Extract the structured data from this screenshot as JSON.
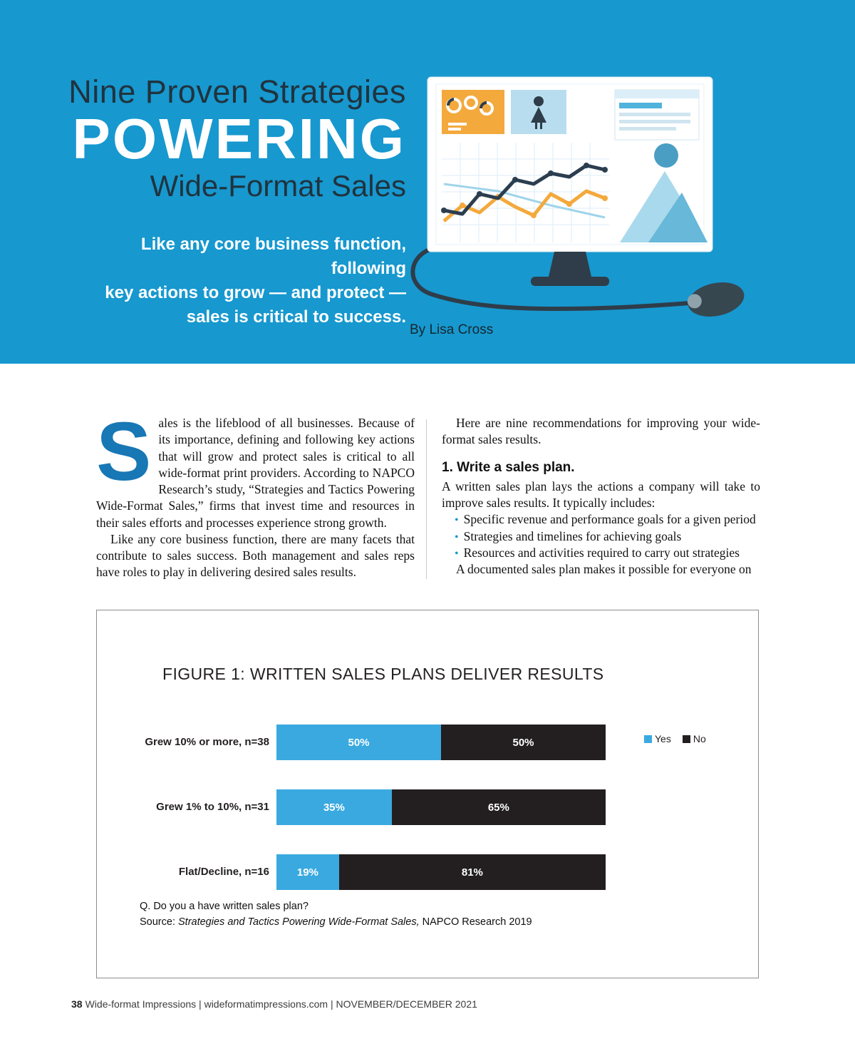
{
  "colors": {
    "header_background": "#1798cf",
    "title_dark": "#20333e",
    "dropcap_blue": "#1877b5",
    "yes_blue": "#3aa9e0",
    "no_dark": "#231f20"
  },
  "header": {
    "title_line1": "Nine Proven Strategies",
    "title_line2": "POWERING",
    "title_line3": "Wide-Format Sales",
    "subtitle_lines": [
      "Like any core business function, following",
      "key actions to grow — and protect —",
      "sales is critical to success."
    ],
    "byline": "By Lisa Cross"
  },
  "article": {
    "left": {
      "dropcap": "S",
      "para1_rest": "ales is the lifeblood of all businesses. Because of its importance, defining and following key actions that will grow and protect sales is critical to all wide-format print providers. According to NAPCO Research’s study, “Strategies and Tactics Powering Wide-Format Sales,” firms that invest time and resources in their sales efforts and processes experience strong growth.",
      "para2": "Like any core business function, there are many facets that contribute to sales success. Both management and sales reps have roles to play in delivering desired sales results."
    },
    "right": {
      "intro": "Here are nine recommendations for improving your wide-format sales results.",
      "heading1": "1.  Write a sales plan.",
      "para1": "A written sales plan lays the actions a company will take to improve sales results. It typically includes:",
      "bullets": [
        "Specific revenue and performance goals for a given period",
        "Strategies and timelines for achieving goals",
        "Resources and activities required to carry out strategies"
      ],
      "closing": "A documented sales plan makes it possible for everyone on"
    }
  },
  "figure": {
    "title": "FIGURE 1: WRITTEN SALES PLANS DELIVER RESULTS",
    "question": "Q. Do you a have written sales plan?",
    "source_prefix": "Source: ",
    "source_italic": "Strategies and Tactics Powering Wide-Format Sales,",
    "source_suffix": " NAPCO Research 2019"
  },
  "chart_data": {
    "type": "bar",
    "orientation": "horizontal-stacked",
    "title": "FIGURE 1: WRITTEN SALES PLANS DELIVER RESULTS",
    "categories": [
      "Grew 10% or more, n=38",
      "Grew 1% to 10%, n=31",
      "Flat/Decline, n=16"
    ],
    "series": [
      {
        "name": "Yes",
        "color": "#3aa9e0",
        "values": [
          50,
          35,
          19
        ]
      },
      {
        "name": "No",
        "color": "#231f20",
        "values": [
          50,
          65,
          81
        ]
      }
    ],
    "value_format": "percent",
    "xlim": [
      0,
      100
    ],
    "legend_position": "right",
    "grid": false
  },
  "page_footer": {
    "page_number": "38",
    "text": "Wide-format Impressions | wideformatimpressions.com | NOVEMBER/DECEMBER 2021"
  }
}
